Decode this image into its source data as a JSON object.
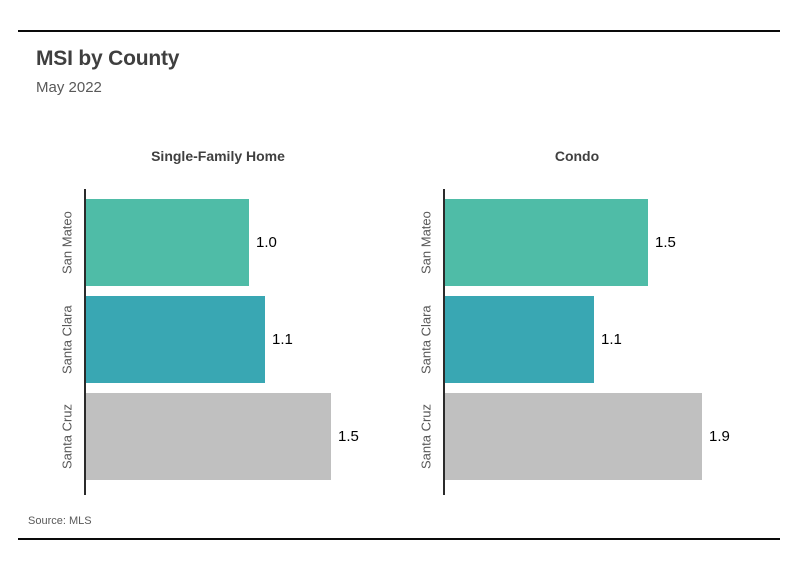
{
  "page": {
    "title": "MSI by County",
    "subtitle": "May 2022",
    "source": "Source: MLS"
  },
  "colors": {
    "bar_colors": [
      "#4fbca7",
      "#39a7b3",
      "#c0c0c0"
    ],
    "axis": "#2b2b2b",
    "rule": "#0a0a0a",
    "title_text": "#3f3f3f",
    "muted_text": "#595959",
    "value_text": "#000000"
  },
  "chart_data": [
    {
      "type": "bar",
      "orientation": "horizontal",
      "title": "Single-Family Home",
      "categories": [
        "San Mateo",
        "Santa Clara",
        "Santa Cruz"
      ],
      "values": [
        1.0,
        1.1,
        1.5
      ],
      "value_labels": [
        "1.0",
        "1.1",
        "1.5"
      ],
      "xlim": [
        0,
        1.8
      ],
      "grid": false,
      "legend": false
    },
    {
      "type": "bar",
      "orientation": "horizontal",
      "title": "Condo",
      "categories": [
        "San Mateo",
        "Santa Clara",
        "Santa Cruz"
      ],
      "values": [
        1.5,
        1.1,
        1.9
      ],
      "value_labels": [
        "1.5",
        "1.1",
        "1.9"
      ],
      "xlim": [
        0,
        2.2
      ],
      "grid": false,
      "legend": false
    }
  ]
}
